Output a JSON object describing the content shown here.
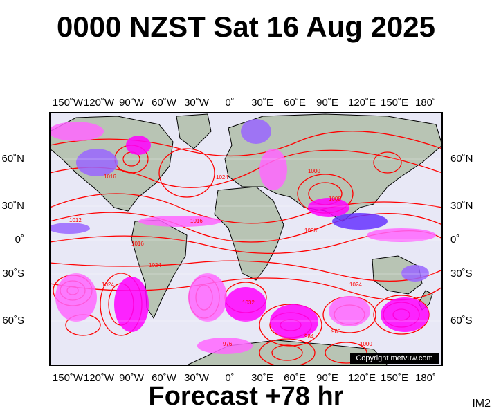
{
  "title": "0000 NZST Sat 16 Aug 2025",
  "forecast": "Forecast +78 hr",
  "image_code": "IM2",
  "copyright": "Copyright metvuw.com",
  "longitude_labels": [
    "150˚W",
    "120˚W",
    "90˚W",
    "60˚W",
    "30˚W",
    "0˚",
    "30˚E",
    "60˚E",
    "90˚E",
    "120˚E",
    "150˚E",
    "180˚"
  ],
  "latitude_labels": [
    "60˚N",
    "30˚N",
    "0˚",
    "30˚S",
    "60˚S"
  ],
  "isobar_labels": [
    "1016",
    "1008",
    "1000",
    "1024",
    "1032",
    "984",
    "976",
    "968",
    "1012"
  ],
  "colors": {
    "isobar": "#ff0000",
    "precip_light": "#ff66ff",
    "precip_heavy": "#ff00ff",
    "precip_cold": "#6633ff",
    "ocean": "#e8e8f6",
    "land": "#b8c4b4",
    "coast": "#000000"
  }
}
